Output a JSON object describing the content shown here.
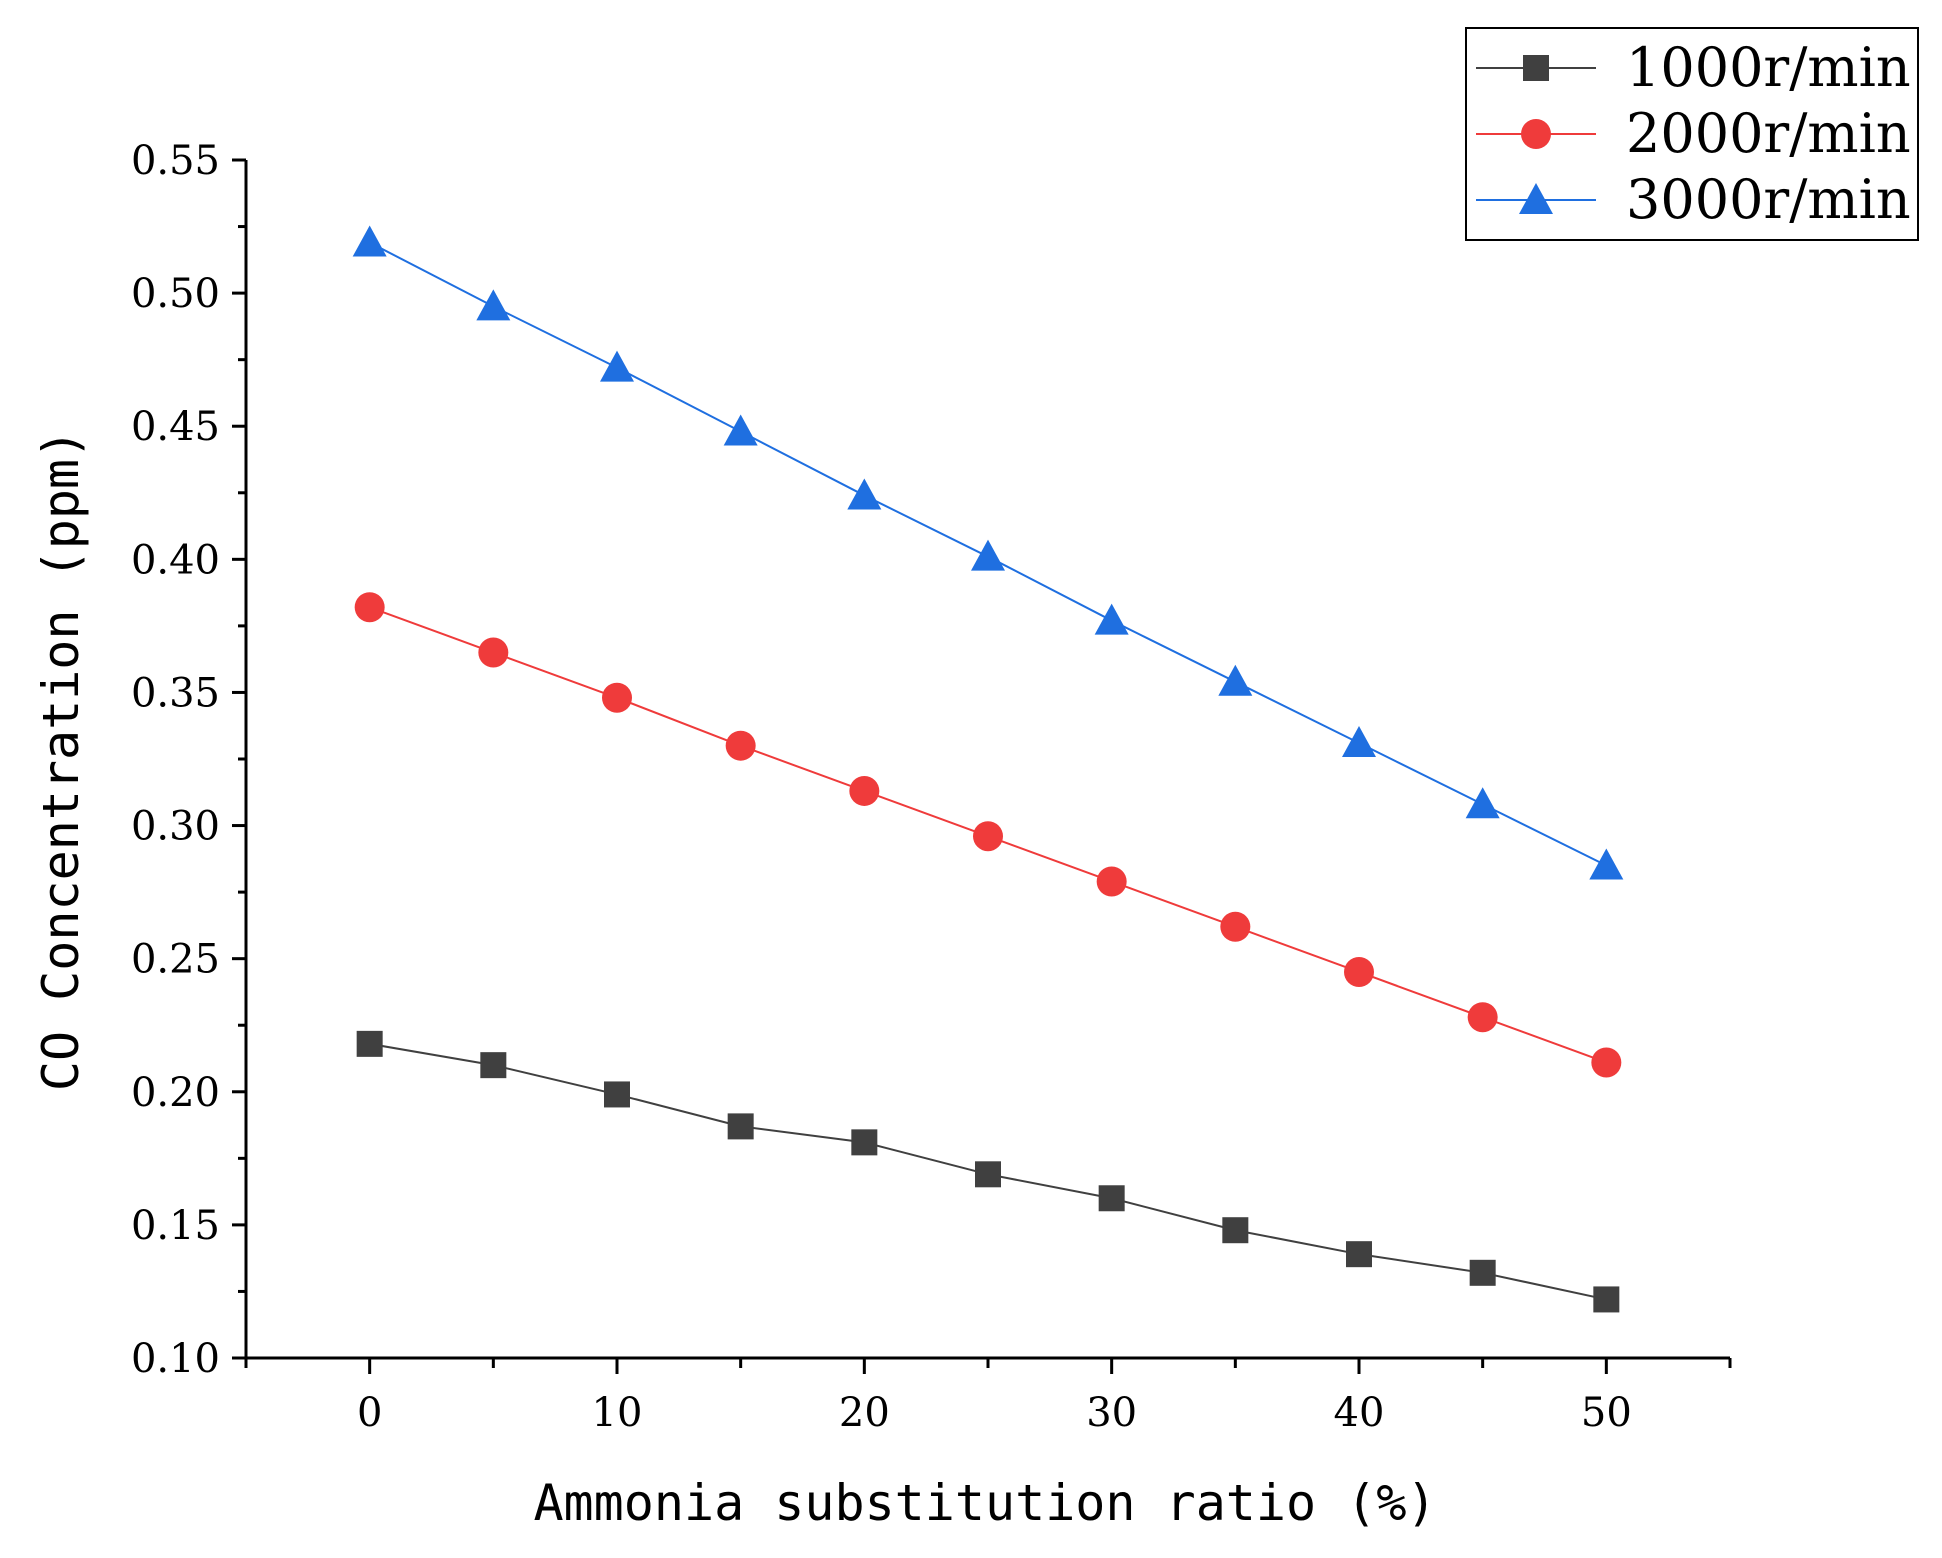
{
  "chart_data": {
    "type": "line",
    "title": "",
    "xlabel": "Ammonia substitution ratio (%)",
    "ylabel": "CO Concentration (ppm)",
    "xlim": [
      -5,
      55
    ],
    "ylim": [
      0.1,
      0.55
    ],
    "x": [
      0,
      5,
      10,
      15,
      20,
      25,
      30,
      35,
      40,
      45,
      50
    ],
    "x_ticks": [
      0,
      10,
      20,
      30,
      40,
      50
    ],
    "x_tick_labels": [
      "0",
      "10",
      "20",
      "30",
      "40",
      "50"
    ],
    "y_ticks": [
      0.1,
      0.15,
      0.2,
      0.25,
      0.3,
      0.35,
      0.4,
      0.45,
      0.5,
      0.55
    ],
    "y_tick_labels": [
      "0.10",
      "0.15",
      "0.20",
      "0.25",
      "0.30",
      "0.35",
      "0.40",
      "0.45",
      "0.50",
      "0.55"
    ],
    "grid": false,
    "legend_position": "top-right",
    "series": [
      {
        "name": "1000r/min",
        "marker": "square",
        "color": "#404040",
        "values": [
          0.218,
          0.21,
          0.199,
          0.187,
          0.181,
          0.169,
          0.16,
          0.148,
          0.139,
          0.132,
          0.122
        ]
      },
      {
        "name": "2000r/min",
        "marker": "circle",
        "color": "#ef3b3b",
        "values": [
          0.382,
          0.365,
          0.348,
          0.33,
          0.313,
          0.296,
          0.279,
          0.262,
          0.245,
          0.228,
          0.211
        ]
      },
      {
        "name": "3000r/min",
        "marker": "triangle",
        "color": "#1f6fe0",
        "values": [
          0.519,
          0.495,
          0.472,
          0.448,
          0.424,
          0.401,
          0.377,
          0.354,
          0.331,
          0.308,
          0.285
        ]
      }
    ]
  }
}
